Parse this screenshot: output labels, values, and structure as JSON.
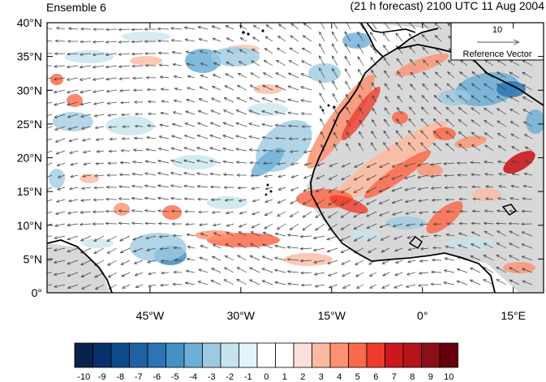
{
  "header": {
    "left_title": "Ensemble 6",
    "right_title": "(21 h forecast) 2100 UTC 11 Aug 2004"
  },
  "map": {
    "lon_range": [
      -62,
      20
    ],
    "lat_range": [
      0,
      40
    ],
    "y_ticks": [
      "0°",
      "5°N",
      "10°N",
      "15°N",
      "20°N",
      "25°N",
      "30°N",
      "35°N",
      "40°N"
    ],
    "x_ticks": [
      "45°W",
      "30°W",
      "15°W",
      "0°",
      "15°E"
    ],
    "reference_vector": {
      "value": "10",
      "label": "Reference Vector"
    },
    "land_color": "#d8d8d8",
    "coast_color": "#000000"
  },
  "colorbar": {
    "labels": [
      "-10",
      "-9",
      "-8",
      "-7",
      "-6",
      "-5",
      "-4",
      "-3",
      "-2",
      "-1",
      "0",
      "1",
      "2",
      "3",
      "4",
      "5",
      "6",
      "7",
      "8",
      "9",
      "10"
    ],
    "colors": [
      "#08234a",
      "#08306b",
      "#0f4a8c",
      "#1f61a3",
      "#2b74b6",
      "#4292c6",
      "#6baed6",
      "#9ecae1",
      "#c6e4ee",
      "#e3f3fb",
      "#ffffff",
      "#ffffff",
      "#fde0dd",
      "#fcbba1",
      "#fc9272",
      "#fb6a4a",
      "#ef3b2c",
      "#cb181d",
      "#b5131c",
      "#8b0f18",
      "#67000d"
    ]
  }
}
